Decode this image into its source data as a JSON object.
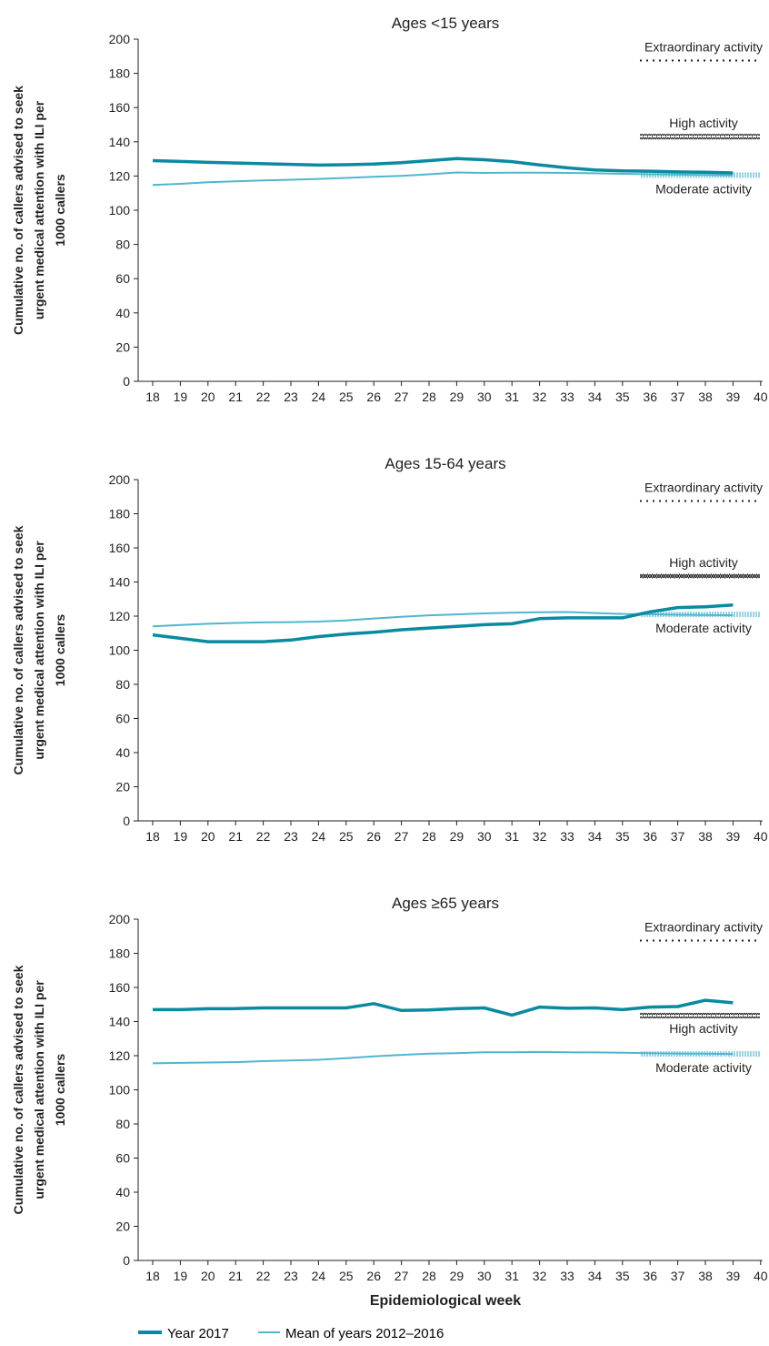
{
  "colors": {
    "year_2017": "#0a8aa0",
    "mean": "#4fb6cf",
    "axis": "#231f20",
    "text": "#231f20"
  },
  "legend": {
    "items": [
      {
        "label": "Year 2017",
        "series": "year_2017"
      },
      {
        "label": "Mean of years 2012–2016",
        "series": "mean"
      }
    ]
  },
  "chart_data": [
    {
      "type": "line",
      "title": "Ages <15 years",
      "ylabel": "Cumulative no. of callers advised to seek urgent medical attention with ILI per 1000 callers",
      "xlabel": "",
      "xlim": [
        18,
        40
      ],
      "ylim": [
        0,
        200
      ],
      "xticks": [
        18,
        19,
        20,
        21,
        22,
        23,
        24,
        25,
        26,
        27,
        28,
        29,
        30,
        31,
        32,
        33,
        34,
        35,
        36,
        37,
        38,
        39,
        40
      ],
      "yticks": [
        0,
        20,
        40,
        60,
        80,
        100,
        120,
        140,
        160,
        180,
        200
      ],
      "grid": false,
      "series": [
        {
          "key": "year_2017",
          "x": [
            18,
            19,
            20,
            21,
            22,
            23,
            24,
            25,
            26,
            27,
            28,
            29,
            30,
            31,
            32,
            33,
            34,
            35,
            36,
            37,
            38,
            39
          ],
          "values": [
            129,
            128.5,
            128,
            127.6,
            127.2,
            126.8,
            126.4,
            126.6,
            127,
            127.8,
            129,
            130.2,
            129.5,
            128.4,
            126.5,
            124.8,
            123.5,
            123,
            122.8,
            122.4,
            122.2,
            121.8
          ]
        },
        {
          "key": "mean",
          "x": [
            18,
            19,
            20,
            21,
            22,
            23,
            24,
            25,
            26,
            27,
            28,
            29,
            30,
            31,
            32,
            33,
            34,
            35,
            36,
            37,
            38,
            39
          ],
          "values": [
            114.8,
            115.4,
            116.4,
            116.9,
            117.4,
            117.8,
            118.3,
            118.9,
            119.5,
            120.1,
            121,
            122.1,
            121.8,
            121.9,
            121.9,
            121.8,
            121.6,
            121.3,
            121,
            120.8,
            120.6,
            120.3
          ]
        }
      ],
      "thresholds": [
        {
          "label": "Extraordinary activity",
          "value": 187.5,
          "style": "dotted"
        },
        {
          "label": "High activity",
          "value": 143,
          "style": "zigzag"
        },
        {
          "label": "Moderate activity",
          "value": 120.5,
          "style": "hatched"
        }
      ]
    },
    {
      "type": "line",
      "title": "Ages 15-64 years",
      "ylabel": "Cumulative no. of callers advised to seek urgent medical attention with ILI per 1000 callers",
      "xlabel": "",
      "xlim": [
        18,
        40
      ],
      "ylim": [
        0,
        200
      ],
      "xticks": [
        18,
        19,
        20,
        21,
        22,
        23,
        24,
        25,
        26,
        27,
        28,
        29,
        30,
        31,
        32,
        33,
        34,
        35,
        36,
        37,
        38,
        39,
        40
      ],
      "yticks": [
        0,
        20,
        40,
        60,
        80,
        100,
        120,
        140,
        160,
        180,
        200
      ],
      "grid": false,
      "series": [
        {
          "key": "year_2017",
          "x": [
            18,
            19,
            20,
            21,
            22,
            23,
            24,
            25,
            26,
            27,
            28,
            29,
            30,
            31,
            32,
            33,
            34,
            35,
            36,
            37,
            38,
            39
          ],
          "values": [
            109,
            107,
            105,
            105,
            105,
            106,
            108,
            109.5,
            110.5,
            112,
            113,
            114,
            115,
            115.5,
            118.5,
            119,
            119,
            119,
            122.5,
            125,
            125.5,
            126.5
          ]
        },
        {
          "key": "mean",
          "x": [
            18,
            19,
            20,
            21,
            22,
            23,
            24,
            25,
            26,
            27,
            28,
            29,
            30,
            31,
            32,
            33,
            34,
            35,
            36,
            37,
            38,
            39
          ],
          "values": [
            114,
            114.8,
            115.5,
            116,
            116.3,
            116.5,
            116.8,
            117.5,
            118.6,
            119.6,
            120.5,
            121,
            121.6,
            122,
            122.3,
            122.4,
            121.8,
            121.3,
            121.1,
            120.8,
            120.7,
            120.5
          ]
        }
      ],
      "thresholds": [
        {
          "label": "Extraordinary activity",
          "value": 187.5,
          "style": "dotted"
        },
        {
          "label": "High activity",
          "value": 143.5,
          "style": "zigzag"
        },
        {
          "label": "Moderate activity",
          "value": 121,
          "style": "hatched"
        }
      ]
    },
    {
      "type": "line",
      "title": "Ages ≥65 years",
      "ylabel": "Cumulative no. of callers advised to seek urgent medical attention with ILI per 1000 callers",
      "xlabel": "Epidemiological week",
      "xlim": [
        18,
        40
      ],
      "ylim": [
        0,
        200
      ],
      "xticks": [
        18,
        19,
        20,
        21,
        22,
        23,
        24,
        25,
        26,
        27,
        28,
        29,
        30,
        31,
        32,
        33,
        34,
        35,
        36,
        37,
        38,
        39,
        40
      ],
      "yticks": [
        0,
        20,
        40,
        60,
        80,
        100,
        120,
        140,
        160,
        180,
        200
      ],
      "grid": false,
      "series": [
        {
          "key": "year_2017",
          "x": [
            18,
            19,
            20,
            21,
            22,
            23,
            24,
            25,
            26,
            27,
            28,
            29,
            30,
            31,
            32,
            33,
            34,
            35,
            36,
            37,
            38,
            39
          ],
          "values": [
            147,
            147,
            147.5,
            147.6,
            148,
            148,
            148,
            148,
            150.5,
            146.5,
            146.8,
            147.6,
            148,
            143.8,
            148.5,
            147.8,
            148,
            147,
            148.5,
            148.8,
            152.5,
            151
          ]
        },
        {
          "key": "mean",
          "x": [
            18,
            19,
            20,
            21,
            22,
            23,
            24,
            25,
            26,
            27,
            28,
            29,
            30,
            31,
            32,
            33,
            34,
            35,
            36,
            37,
            38,
            39
          ],
          "values": [
            115.5,
            115.8,
            116,
            116.2,
            116.8,
            117.2,
            117.6,
            118.5,
            119.6,
            120.5,
            121.2,
            121.5,
            122,
            122,
            122.2,
            122,
            121.9,
            121.7,
            121.5,
            121.3,
            121.2,
            121
          ]
        }
      ],
      "thresholds": [
        {
          "label": "Extraordinary activity",
          "value": 187.5,
          "style": "dotted"
        },
        {
          "label": "High activity",
          "value": 143.5,
          "style": "zigzag"
        },
        {
          "label": "Moderate activity",
          "value": 121,
          "style": "hatched"
        }
      ]
    }
  ]
}
